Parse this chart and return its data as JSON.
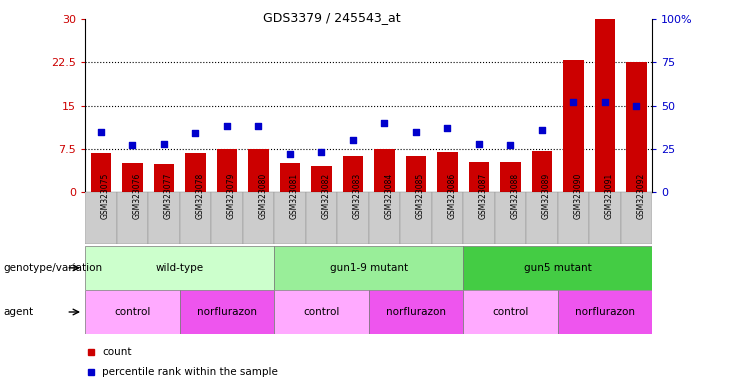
{
  "title": "GDS3379 / 245543_at",
  "categories": [
    "GSM323075",
    "GSM323076",
    "GSM323077",
    "GSM323078",
    "GSM323079",
    "GSM323080",
    "GSM323081",
    "GSM323082",
    "GSM323083",
    "GSM323084",
    "GSM323085",
    "GSM323086",
    "GSM323087",
    "GSM323088",
    "GSM323089",
    "GSM323090",
    "GSM323091",
    "GSM323092"
  ],
  "bar_values": [
    6.8,
    5.0,
    4.8,
    6.8,
    7.5,
    7.5,
    5.0,
    4.5,
    6.2,
    7.5,
    6.2,
    7.0,
    5.2,
    5.2,
    7.2,
    23.0,
    30.0,
    22.5
  ],
  "percentile_values": [
    35,
    27,
    28,
    34,
    38,
    38,
    22,
    23,
    30,
    40,
    35,
    37,
    28,
    27,
    36,
    52,
    52,
    50
  ],
  "bar_color": "#cc0000",
  "percentile_color": "#0000cc",
  "left_yticks": [
    0,
    7.5,
    15,
    22.5,
    30
  ],
  "left_ylabels": [
    "0",
    "7.5",
    "15",
    "22.5",
    "30"
  ],
  "right_yticks": [
    0,
    25,
    50,
    75,
    100
  ],
  "right_ylabels": [
    "0",
    "25",
    "50",
    "75",
    "100%"
  ],
  "left_ylim": [
    0,
    30
  ],
  "right_ylim": [
    0,
    100
  ],
  "hlines": [
    7.5,
    15,
    22.5
  ],
  "genotype_groups": [
    {
      "label": "wild-type",
      "start": 0,
      "end": 6,
      "color": "#ccffcc"
    },
    {
      "label": "gun1-9 mutant",
      "start": 6,
      "end": 12,
      "color": "#99ee99"
    },
    {
      "label": "gun5 mutant",
      "start": 12,
      "end": 18,
      "color": "#44cc44"
    }
  ],
  "agent_groups": [
    {
      "label": "control",
      "start": 0,
      "end": 3,
      "color": "#ffaaff"
    },
    {
      "label": "norflurazon",
      "start": 3,
      "end": 6,
      "color": "#ee55ee"
    },
    {
      "label": "control",
      "start": 6,
      "end": 9,
      "color": "#ffaaff"
    },
    {
      "label": "norflurazon",
      "start": 9,
      "end": 12,
      "color": "#ee55ee"
    },
    {
      "label": "control",
      "start": 12,
      "end": 15,
      "color": "#ffaaff"
    },
    {
      "label": "norflurazon",
      "start": 15,
      "end": 18,
      "color": "#ee55ee"
    }
  ],
  "legend_items": [
    {
      "label": "count",
      "color": "#cc0000"
    },
    {
      "label": "percentile rank within the sample",
      "color": "#0000cc"
    }
  ],
  "ylabel_left_color": "#cc0000",
  "ylabel_right_color": "#0000cc",
  "genotype_label": "genotype/variation",
  "agent_label": "agent",
  "xtick_bg_color": "#cccccc"
}
